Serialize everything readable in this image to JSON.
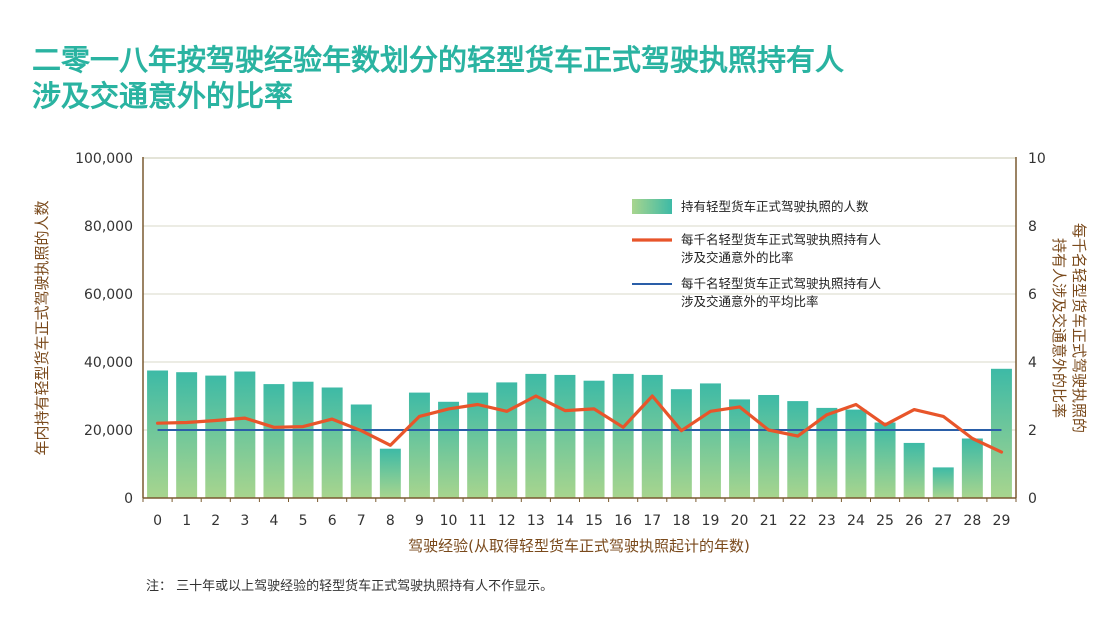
{
  "title_lines": [
    "二零一八年按驾驶经验年数划分的轻型货车正式驾驶执照持有人",
    "涉及交通意外的比率"
  ],
  "note": "注： 三十年或以上驾驶经验的轻型货车正式驾驶执照持有人不作显示。",
  "colors": {
    "title": "#2ab3a1",
    "bar_top": "#3dbaa6",
    "bar_bottom": "#a8d58e",
    "line": "#e8552a",
    "avg_line": "#2a5ea8",
    "axis_label": "#7a4a1c",
    "frame": "#7a5a30"
  },
  "chart_data": {
    "type": "bar",
    "title": "二零一八年按驾驶经验年数划分的轻型货车正式驾驶执照持有人涉及交通意外的比率",
    "xlabel": "驾驶经验(从取得轻型货车正式驾驶执照起计的年数)",
    "ylabel_left": "年内持有轻型货车正式驾驶执照的人数",
    "ylabel_right": "每千名轻型货车正式驾驶执照的持有人涉及交通意外的比率",
    "ylabel_right_lines": [
      "每千名轻型货车正式驾驶执照的",
      "持有人涉及交通意外的比率"
    ],
    "ylim_left": [
      0,
      100000
    ],
    "ylim_right": [
      0,
      10
    ],
    "y_ticks_left": [
      "0",
      "20,000",
      "40,000",
      "60,000",
      "80,000",
      "100,000"
    ],
    "y_ticks_right": [
      "0",
      "2",
      "4",
      "6",
      "8",
      "10"
    ],
    "categories": [
      "0",
      "1",
      "2",
      "3",
      "4",
      "5",
      "6",
      "7",
      "8",
      "9",
      "10",
      "11",
      "12",
      "13",
      "14",
      "15",
      "16",
      "17",
      "18",
      "19",
      "20",
      "21",
      "22",
      "23",
      "24",
      "25",
      "26",
      "27",
      "28",
      "29"
    ],
    "grid": true,
    "legend_position": "top-right",
    "series": [
      {
        "name": "持有轻型货车正式驾驶执照的人数",
        "legend_lines": [
          "持有轻型货车正式驾驶执照的人数"
        ],
        "type": "bar",
        "axis": "left",
        "values": [
          37500,
          37000,
          36000,
          37200,
          33500,
          34200,
          32500,
          27500,
          14500,
          31000,
          28300,
          31000,
          34000,
          36500,
          36200,
          34500,
          36500,
          36200,
          32000,
          33700,
          29000,
          30300,
          28500,
          26500,
          26000,
          22200,
          16200,
          9000,
          17500,
          38000
        ]
      },
      {
        "name": "每千名轻型货车正式驾驶执照持有人涉及交通意外的比率",
        "legend_lines": [
          "每千名轻型货车正式驾驶执照持有人",
          "涉及交通意外的比率"
        ],
        "type": "line",
        "axis": "right",
        "values": [
          2.2,
          2.22,
          2.28,
          2.35,
          2.08,
          2.1,
          2.32,
          1.98,
          1.55,
          2.4,
          2.62,
          2.75,
          2.55,
          3.0,
          2.57,
          2.62,
          2.08,
          3.0,
          1.98,
          2.55,
          2.68,
          2.0,
          1.82,
          2.45,
          2.75,
          2.15,
          2.6,
          2.4,
          1.75,
          1.35
        ]
      },
      {
        "name": "每千名轻型货车正式驾驶执照持有人涉及交通意外的平均比率",
        "legend_lines": [
          "每千名轻型货车正式驾驶执照持有人",
          "涉及交通意外的平均比率"
        ],
        "type": "line",
        "axis": "right",
        "values": [
          2.0,
          2.0,
          2.0,
          2.0,
          2.0,
          2.0,
          2.0,
          2.0,
          2.0,
          2.0,
          2.0,
          2.0,
          2.0,
          2.0,
          2.0,
          2.0,
          2.0,
          2.0,
          2.0,
          2.0,
          2.0,
          2.0,
          2.0,
          2.0,
          2.0,
          2.0,
          2.0,
          2.0,
          2.0,
          2.0
        ]
      }
    ]
  }
}
